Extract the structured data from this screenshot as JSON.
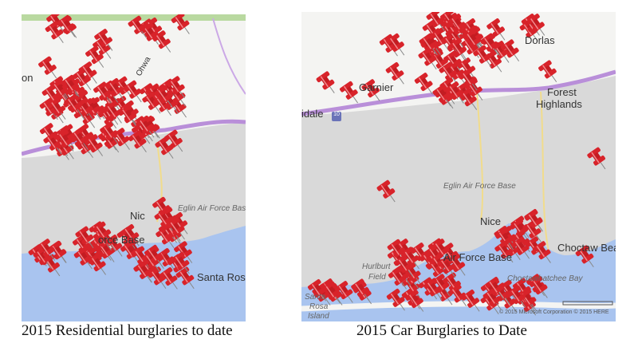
{
  "maps": [
    {
      "caption": "2015 Residential burglaries to date",
      "labels": {
        "town_west": "on",
        "city": "Nic",
        "base": "orce Base",
        "eglin": "Eglin Air Force Base",
        "santa_rosa": "Santa Ros",
        "road": "Ohwa"
      }
    },
    {
      "caption": "2015 Car Burglaries to Date",
      "labels": {
        "town_west": "idale",
        "garnier": "Garnier",
        "destin": "Dorlas",
        "forest": "Forest",
        "highlands": "Highlands",
        "interstate": "10",
        "eglin": "Eglin Air Force Base",
        "city": "Nice",
        "base": "Air Force Base",
        "choctaw": "Choctaw Beach",
        "hurlburt": "Hurlburt",
        "field": "Field",
        "bay": "Choctawhatchee Bay",
        "santa": "Santa",
        "rosa": "Rosa",
        "island": "Island",
        "copyright": "© 2015 Microsoft Corporation  © 2015 HERE"
      }
    }
  ],
  "colors": {
    "pin": "#d8232a",
    "land": "#f4f4f2",
    "base_area": "#d9d9d9",
    "water": "#a9c4ef",
    "interstate": "#b98fd9",
    "road": "#f1dc8c"
  },
  "marker_icon": "pushpin-icon"
}
